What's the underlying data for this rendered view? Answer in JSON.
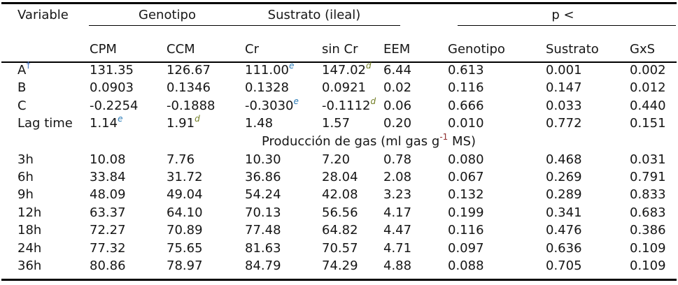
{
  "colors": {
    "text": "#161616",
    "rule": "#000000",
    "sup_e": "#2e7db8",
    "sup_d": "#6e7a1f",
    "sup_neg1": "#8d2e2e",
    "sup_dagger": "#3f6fc0"
  },
  "table": {
    "header": {
      "variable": "Variable",
      "genotipo_group": "Genotipo",
      "sustrato_group": "Sustrato (ileal)",
      "p_group": "p <",
      "columns": [
        "CPM",
        "CCM",
        "Cr",
        "sin Cr",
        "EEM",
        "Genotipo",
        "Sustrato",
        "GxS"
      ]
    },
    "kinetics_rows": [
      {
        "label": "A^{†}",
        "cells": [
          "131.35",
          "126.67",
          "111.00^{e}",
          "147.02^{d}",
          "6.44",
          "0.613",
          "0.001",
          "0.002"
        ]
      },
      {
        "label": "B",
        "cells": [
          "0.0903",
          "0.1346",
          "0.1328",
          "0.0921",
          "0.02",
          "0.116",
          "0.147",
          "0.012"
        ]
      },
      {
        "label": "C",
        "cells": [
          "-0.2254",
          "-0.1888",
          "-0.3030^{e}",
          "-0.1112^{d}",
          "0.06",
          "0.666",
          "0.033",
          "0.440"
        ]
      },
      {
        "label": "Lag time",
        "cells": [
          "1.14^{e}",
          "1.91^{d}",
          "1.48",
          "1.57",
          "0.20",
          "0.010",
          "0.772",
          "0.151"
        ]
      }
    ],
    "section_header": "Producción de gas (ml gas g^{-1} MS)",
    "gas_rows": [
      {
        "label": "3h",
        "cells": [
          "10.08",
          "7.76",
          "10.30",
          "7.20",
          "0.78",
          "0.080",
          "0.468",
          "0.031"
        ]
      },
      {
        "label": "6h",
        "cells": [
          "33.84",
          "31.72",
          "36.86",
          "28.04",
          "2.08",
          "0.067",
          "0.269",
          "0.791"
        ]
      },
      {
        "label": "9h",
        "cells": [
          "48.09",
          "49.04",
          "54.24",
          "42.08",
          "3.23",
          "0.132",
          "0.289",
          "0.833"
        ]
      },
      {
        "label": "12h",
        "cells": [
          "63.37",
          "64.10",
          "70.13",
          "56.56",
          "4.17",
          "0.199",
          "0.341",
          "0.683"
        ]
      },
      {
        "label": "18h",
        "cells": [
          "72.27",
          "70.89",
          "77.48",
          "64.82",
          "4.47",
          "0.116",
          "0.476",
          "0.386"
        ]
      },
      {
        "label": "24h",
        "cells": [
          "77.32",
          "75.65",
          "81.63",
          "70.57",
          "4.71",
          "0.097",
          "0.636",
          "0.109"
        ]
      },
      {
        "label": "36h",
        "cells": [
          "80.86",
          "78.97",
          "84.79",
          "74.29",
          "4.88",
          "0.088",
          "0.705",
          "0.109"
        ]
      }
    ]
  }
}
